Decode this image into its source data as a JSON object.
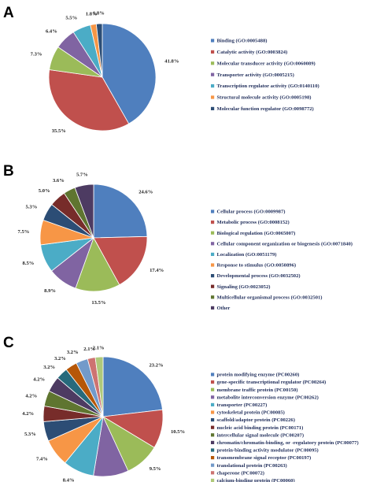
{
  "chart_data": [
    {
      "type": "pie",
      "panel_label": "A",
      "categories": [
        "Binding (GO:0005488)",
        "Catalytic activity (GO:0003824)",
        "Molecular transducer activity (GO:0060089)",
        "Transporter activity (GO:0005215)",
        "Transcription regulator activity (GO:0140110)",
        "Structural molecule activity (GO:0005198)",
        "Molecular function regulator (GO:0098772)"
      ],
      "values": [
        41.8,
        35.5,
        7.3,
        6.4,
        5.5,
        1.8,
        1.8
      ],
      "value_labels": [
        "41.8%",
        "35.5%",
        "7.3%",
        "6.4%",
        "5.5%",
        "1.8%",
        "1.8%"
      ],
      "colors": [
        "#4f7fbe",
        "#c0504d",
        "#9bbb59",
        "#8064a2",
        "#4bacc6",
        "#f79646",
        "#2c4d75"
      ],
      "legend_position": "right"
    },
    {
      "type": "pie",
      "panel_label": "B",
      "categories": [
        "Cellular process (GO:0009987)",
        "Metabolic process (GO:0008152)",
        "Biological regulation (GO:0065007)",
        "Cellular component organization or biogenesis (GO:0071840)",
        "Localization (GO:0051179)",
        "Response to stimulus (GO:0050896)",
        "Developmental process (GO:0032502)",
        "Signaling (GO:0023052)",
        "Multicellular organismal process (GO:0032501)",
        "Other"
      ],
      "values": [
        24.6,
        17.4,
        13.5,
        8.9,
        8.5,
        7.5,
        5.3,
        5.0,
        3.6,
        5.7
      ],
      "value_labels": [
        "24.6%",
        "17.4%",
        "13.5%",
        "8.9%",
        "8.5%",
        "7.5%",
        "5.3%",
        "5.0%",
        "3.6%",
        "5.7%"
      ],
      "colors": [
        "#4f7fbe",
        "#c0504d",
        "#9bbb59",
        "#8064a2",
        "#4bacc6",
        "#f79646",
        "#2c4d75",
        "#772c2a",
        "#5f7530",
        "#4d3b62"
      ],
      "legend_position": "right"
    },
    {
      "type": "pie",
      "panel_label": "C",
      "categories": [
        "protein modifying enzyme (PC00260)",
        "gene-specific transcriptional regulator (PC00264)",
        "membrane traffic protein (PC00150)",
        "metabolite interconversion enzyme (PC00262)",
        "transporter (PC00227)",
        "cytoskeletal protein (PC00085)",
        "scaffold/adaptor protein (PC00226)",
        "nucleic acid binding protein (PC00171)",
        "intercellular signal molecule (PC00207)",
        "chromatin/chromatin-binding, or -regulatory protein (PC00077)",
        "protein-binding activity modulator (PC00095)",
        "transmembrane signal receptor (PC00197)",
        "translational protein (PC00263)",
        "chaperone (PC00072)",
        "calcium-binding protein (PC00060)"
      ],
      "values": [
        23.2,
        10.5,
        9.5,
        9.5,
        8.4,
        7.4,
        5.3,
        4.2,
        4.2,
        4.2,
        3.2,
        3.2,
        3.2,
        2.1,
        2.1
      ],
      "value_labels": [
        "23.2%",
        "10.5%",
        "9.5%",
        "9.5%",
        "8.4%",
        "7.4%",
        "5.3%",
        "4.2%",
        "4.2%",
        "4.2%",
        "3.2%",
        "3.2%",
        "3.2%",
        "2.1%",
        "2.1%"
      ],
      "colors": [
        "#4f7fbe",
        "#c0504d",
        "#9bbb59",
        "#8064a2",
        "#4bacc6",
        "#f79646",
        "#2c4d75",
        "#772c2a",
        "#5f7530",
        "#4d3b62",
        "#276a7c",
        "#b65708",
        "#729aca",
        "#cd7371",
        "#afc97a"
      ],
      "legend_position": "right"
    }
  ]
}
